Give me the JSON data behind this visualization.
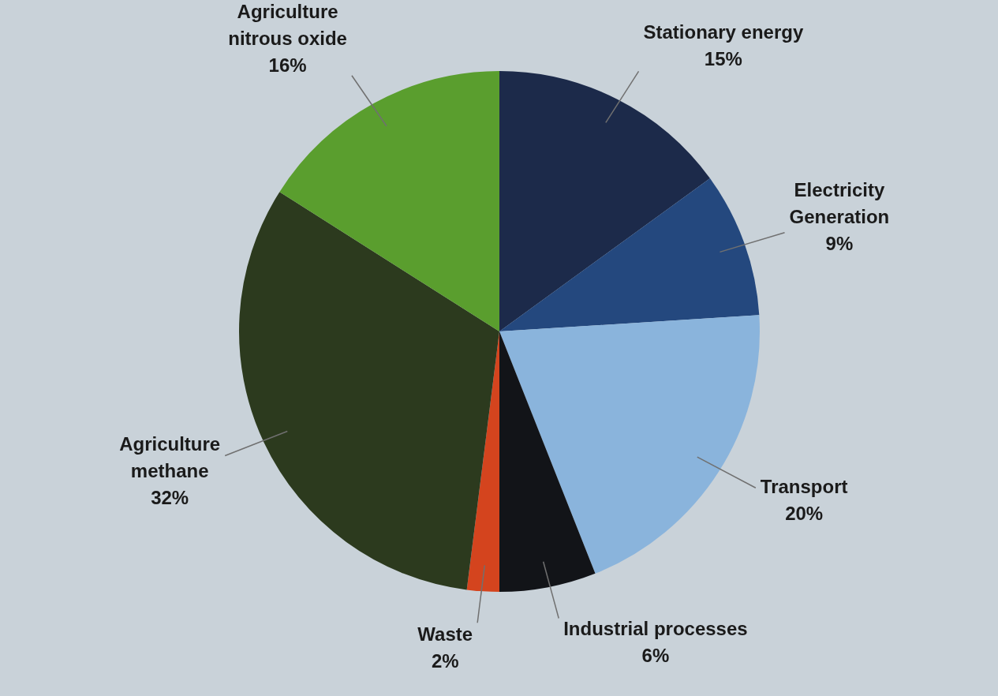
{
  "chart_data": {
    "type": "pie",
    "categories": [
      "Stationary energy",
      "Electricity\nGeneration",
      "Transport",
      "Industrial processes",
      "Waste",
      "Agriculture\nmethane",
      "Agriculture\nnitrous oxide"
    ],
    "values": [
      15,
      9,
      20,
      6,
      2,
      32,
      16
    ],
    "value_labels": [
      "15%",
      "9%",
      "20%",
      "6%",
      "2%",
      "32%",
      "16%"
    ],
    "colors": [
      "#1c2a4a",
      "#24487e",
      "#8ab4dc",
      "#121418",
      "#d4441e",
      "#2c3a1e",
      "#5a9e2e"
    ],
    "legend": false
  }
}
